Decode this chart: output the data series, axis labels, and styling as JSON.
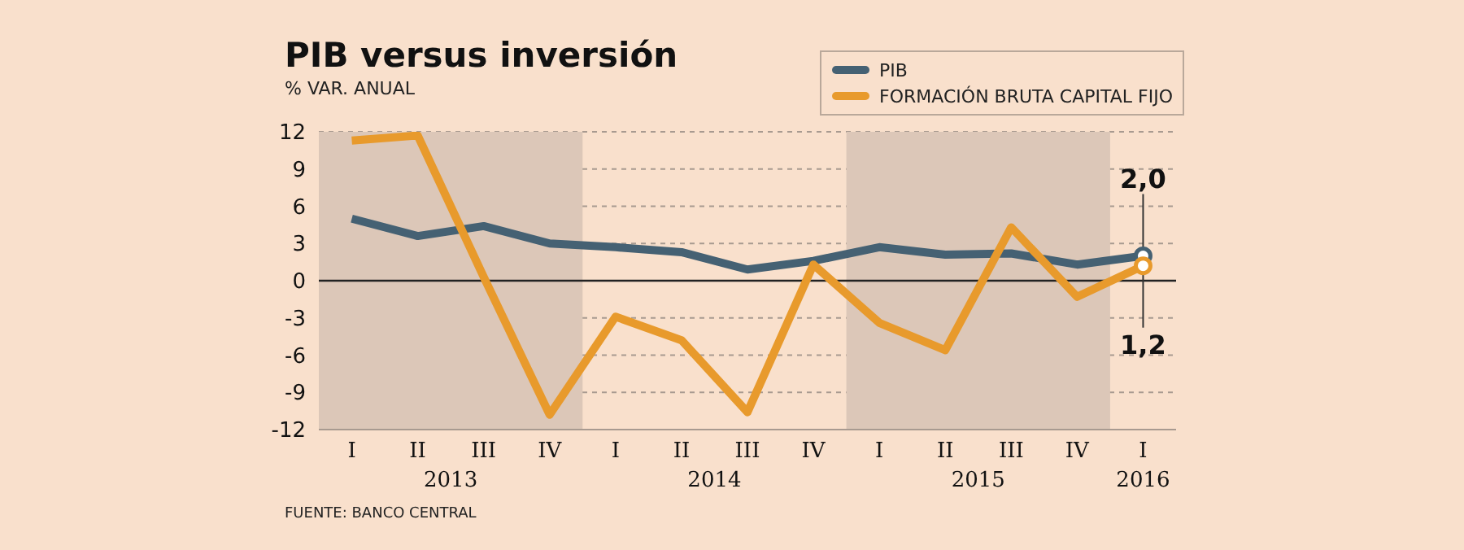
{
  "chart_data": {
    "type": "line",
    "title": "PIB versus inversión",
    "subtitle": "% VAR. ANUAL",
    "categories": [
      "I",
      "II",
      "III",
      "IV",
      "I",
      "II",
      "III",
      "IV",
      "I",
      "II",
      "III",
      "IV",
      "I"
    ],
    "ylim": [
      -12,
      12
    ],
    "yticks": [
      -12,
      -9,
      -6,
      -3,
      0,
      3,
      6,
      9,
      12
    ],
    "grid": "y",
    "legend": "top right",
    "line_style": "solid",
    "series": [
      {
        "name": "PIB",
        "color": "#456173",
        "values": [
          5.0,
          3.6,
          4.4,
          3.0,
          2.7,
          2.3,
          0.9,
          1.6,
          2.7,
          2.1,
          2.2,
          1.3,
          2.0
        ],
        "value_labels": [
          null,
          null,
          null,
          null,
          null,
          null,
          null,
          null,
          null,
          null,
          null,
          null,
          "2,0"
        ]
      },
      {
        "name": "FORMACIÓN BRUTA CAPITAL FIJO",
        "color": "#e89a2c",
        "values": [
          11.3,
          11.7,
          0.3,
          -10.8,
          -2.9,
          -4.8,
          -10.6,
          1.3,
          -3.4,
          -5.6,
          4.3,
          -1.3,
          1.2
        ],
        "value_labels": [
          null,
          null,
          null,
          null,
          null,
          null,
          null,
          null,
          null,
          null,
          null,
          null,
          "1,2"
        ]
      }
    ],
    "ref_lines": [
      {
        "axis": "y",
        "value": 0,
        "color": "#222222"
      }
    ],
    "marker": "none",
    "annotations": [
      "2013",
      "2014",
      "2015",
      "2016",
      "FUENTE: BANCO CENTRAL"
    ]
  }
}
